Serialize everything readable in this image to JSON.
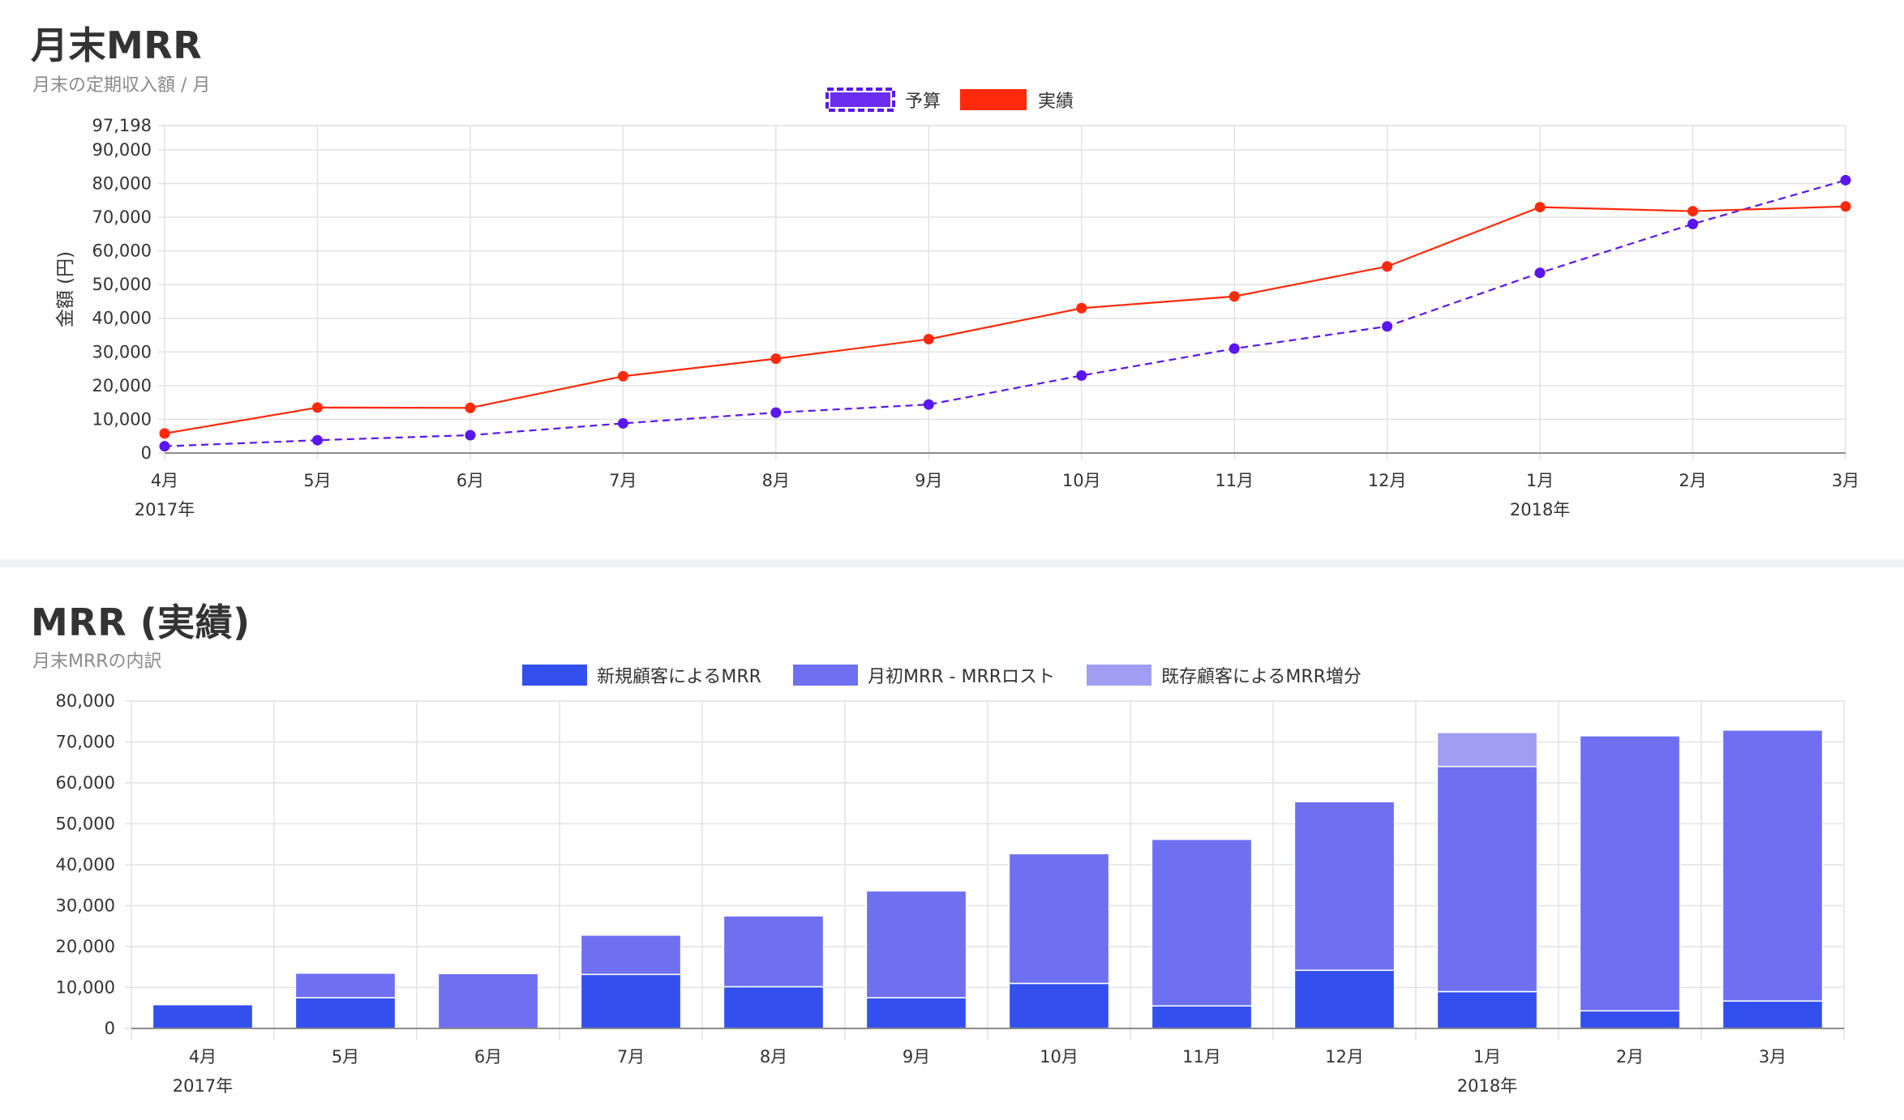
{
  "charts": {
    "mrr_end": {
      "title": "月末MRR",
      "subtitle": "月末の定期収入額 / 月"
    },
    "mrr_breakdown": {
      "title": "MRR (実績)",
      "subtitle": "月末MRRの内訳"
    }
  },
  "colors": {
    "budget": "#5a16ee",
    "actual": "#ff2a0b",
    "new_customers": "#3350ee",
    "start_minus_lost": "#6e70f1",
    "expansion": "#a09ef2",
    "grid": "#e2e2e2",
    "axis": "#8c8c8c"
  },
  "chart_data": [
    {
      "type": "line",
      "title": "月末MRR",
      "subtitle": "月末の定期収入額 / 月",
      "ylabel": "金額 (円)",
      "xlabel": "",
      "categories": [
        "4月",
        "5月",
        "6月",
        "7月",
        "8月",
        "9月",
        "10月",
        "11月",
        "12月",
        "1月",
        "2月",
        "3月"
      ],
      "year_labels": [
        {
          "index": 0,
          "label": "2017年"
        },
        {
          "index": 9,
          "label": "2018年"
        }
      ],
      "yticks": [
        0,
        10000,
        20000,
        30000,
        40000,
        50000,
        60000,
        70000,
        80000,
        90000,
        97198
      ],
      "ytick_labels": [
        "0",
        "10,000",
        "20,000",
        "30,000",
        "40,000",
        "50,000",
        "60,000",
        "70,000",
        "80,000",
        "90,000",
        "97,198"
      ],
      "ylim": [
        0,
        97198
      ],
      "grid": true,
      "legend_position": "top",
      "series": [
        {
          "name": "予算",
          "style": "dashed",
          "values": [
            2000,
            3800,
            5300,
            8800,
            12000,
            14400,
            23000,
            31000,
            37600,
            53500,
            68000,
            81000
          ]
        },
        {
          "name": "実績",
          "style": "solid",
          "values": [
            5800,
            13500,
            13400,
            22800,
            28000,
            33800,
            43000,
            46500,
            55400,
            73000,
            71800,
            73200
          ]
        }
      ]
    },
    {
      "type": "bar",
      "stacked": true,
      "categories": [
        "4月",
        "5月",
        "6月",
        "7月",
        "8月",
        "9月",
        "10月",
        "11月",
        "12月",
        "1月",
        "2月",
        "3月"
      ],
      "year_labels": [
        {
          "index": 0,
          "label": "2017年"
        },
        {
          "index": 9,
          "label": "2018年"
        }
      ],
      "yticks": [
        0,
        10000,
        20000,
        30000,
        40000,
        50000,
        60000,
        70000,
        80000
      ],
      "ytick_labels": [
        "0",
        "10,000",
        "20,000",
        "30,000",
        "40,000",
        "50,000",
        "60,000",
        "70,000",
        "80,000"
      ],
      "ylim": [
        0,
        80000
      ],
      "grid": true,
      "legend_position": "top",
      "series": [
        {
          "name": "新規顧客によるMRR",
          "values": [
            5800,
            7500,
            0,
            13200,
            10200,
            7500,
            11000,
            5500,
            14200,
            9000,
            4300,
            6700
          ]
        },
        {
          "name": "月初MRR - MRRロスト",
          "values": [
            0,
            6000,
            13400,
            9600,
            17300,
            26100,
            31700,
            40700,
            41200,
            55000,
            67200,
            66200
          ]
        },
        {
          "name": "既存顧客によるMRR増分",
          "values": [
            0,
            0,
            0,
            0,
            0,
            0,
            0,
            0,
            0,
            8300,
            0,
            0
          ]
        }
      ]
    }
  ]
}
